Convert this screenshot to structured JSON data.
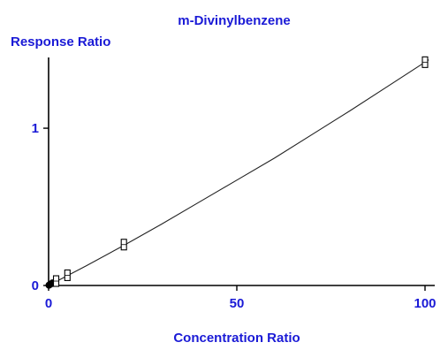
{
  "chart_data": {
    "type": "scatter",
    "title": "m-Divinylbenzene",
    "xlabel": "Concentration Ratio",
    "ylabel": "Response Ratio",
    "xlim": [
      0,
      102
    ],
    "ylim": [
      0,
      1.45
    ],
    "x_ticks": [
      0,
      50,
      100
    ],
    "y_ticks": [
      0,
      1
    ],
    "grid": false,
    "legend": "none",
    "text_color": "#1a1ad6",
    "series": [
      {
        "points": [
          {
            "x": 0.1,
            "y": 0.002
          },
          {
            "x": 0.5,
            "y": 0.008
          },
          {
            "x": 1,
            "y": 0.016
          },
          {
            "x": 2,
            "y": 0.028
          },
          {
            "x": 5,
            "y": 0.065
          },
          {
            "x": 20,
            "y": 0.26
          },
          {
            "x": 100,
            "y": 1.42
          }
        ],
        "fit_curve": [
          {
            "x": 0,
            "y": 0
          },
          {
            "x": 10,
            "y": 0.125
          },
          {
            "x": 20,
            "y": 0.255
          },
          {
            "x": 30,
            "y": 0.39
          },
          {
            "x": 40,
            "y": 0.53
          },
          {
            "x": 50,
            "y": 0.67
          },
          {
            "x": 60,
            "y": 0.81
          },
          {
            "x": 70,
            "y": 0.96
          },
          {
            "x": 80,
            "y": 1.11
          },
          {
            "x": 90,
            "y": 1.265
          },
          {
            "x": 100,
            "y": 1.42
          },
          {
            "x": 101,
            "y": 1.435
          }
        ]
      }
    ]
  }
}
